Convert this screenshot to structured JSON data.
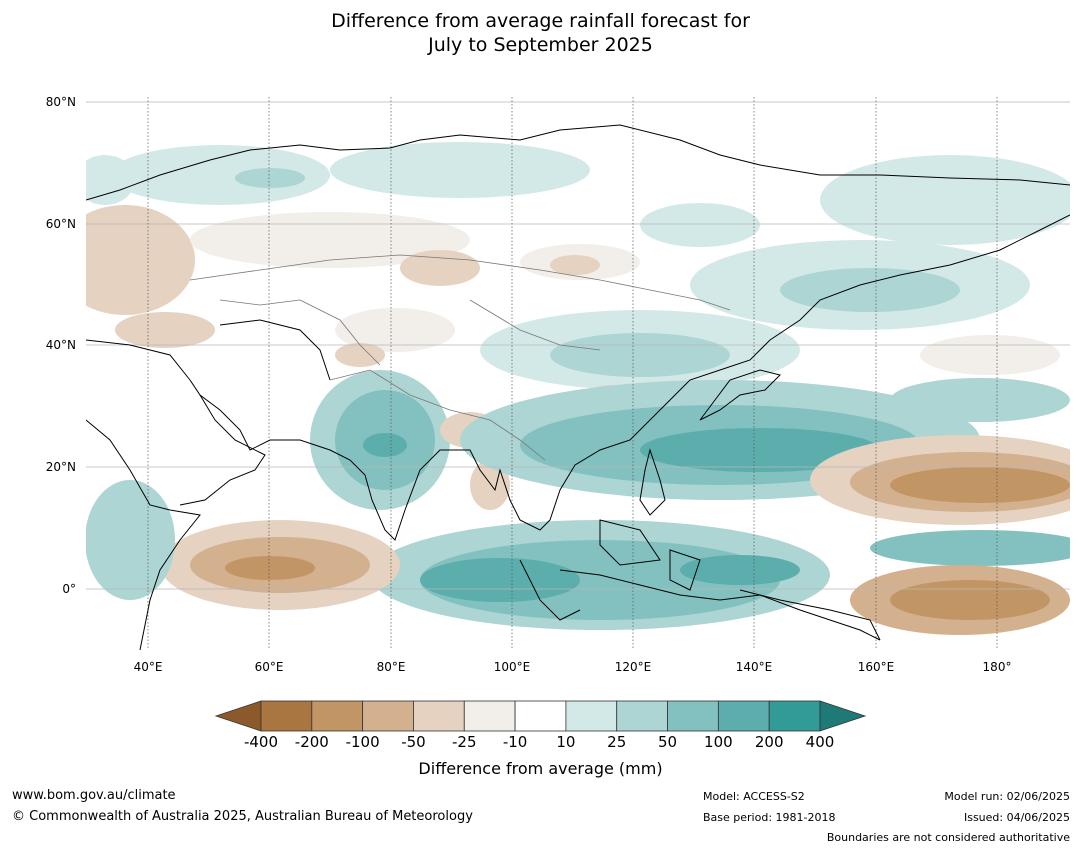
{
  "title_line1": "Difference from average rainfall forecast for",
  "title_line2": "July to September 2025",
  "lat_labels": [
    "80°N",
    "60°N",
    "40°N",
    "20°N",
    "0°"
  ],
  "lon_labels": [
    "40°E",
    "60°E",
    "80°E",
    "100°E",
    "120°E",
    "140°E",
    "160°E",
    "180°"
  ],
  "colorbar": {
    "ticks": [
      "-400",
      "-200",
      "-100",
      "-50",
      "-25",
      "-10",
      "10",
      "25",
      "50",
      "100",
      "200",
      "400"
    ],
    "colors": [
      "#8c5a2a",
      "#a97540",
      "#c29565",
      "#d3b08e",
      "#e5d2c1",
      "#f2eee9",
      "#ffffff",
      "#d3e9e8",
      "#acd5d4",
      "#82c1bf",
      "#5caeac",
      "#329a97",
      "#1f7a77"
    ],
    "title": "Difference from average (mm)"
  },
  "footer": {
    "website": "www.bom.gov.au/climate",
    "copyright": "© Commonwealth of Australia 2025, Australian Bureau of Meteorology",
    "model": "Model: ACCESS-S2",
    "base_period": "Base period: 1981-2018",
    "model_run": "Model run: 02/06/2025",
    "issued": "Issued: 04/06/2025",
    "boundaries": "Boundaries are not considered authoritative"
  }
}
